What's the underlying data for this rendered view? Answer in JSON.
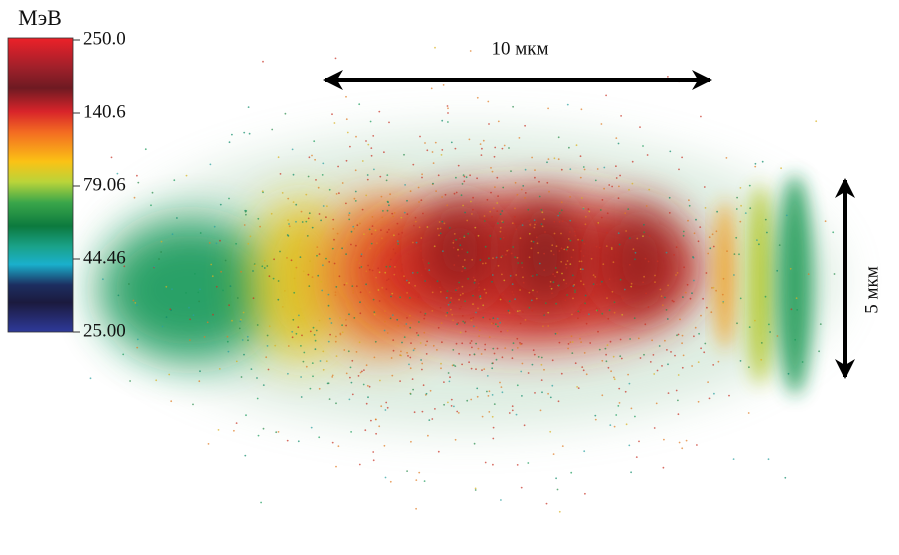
{
  "colorbar": {
    "unit": "МэВ",
    "tick_labels": [
      "250.0",
      "140.6",
      "79.06",
      "44.46",
      "25.00"
    ]
  },
  "scale_bars": {
    "horizontal": "10 мкм",
    "vertical": "5 мкм"
  }
}
